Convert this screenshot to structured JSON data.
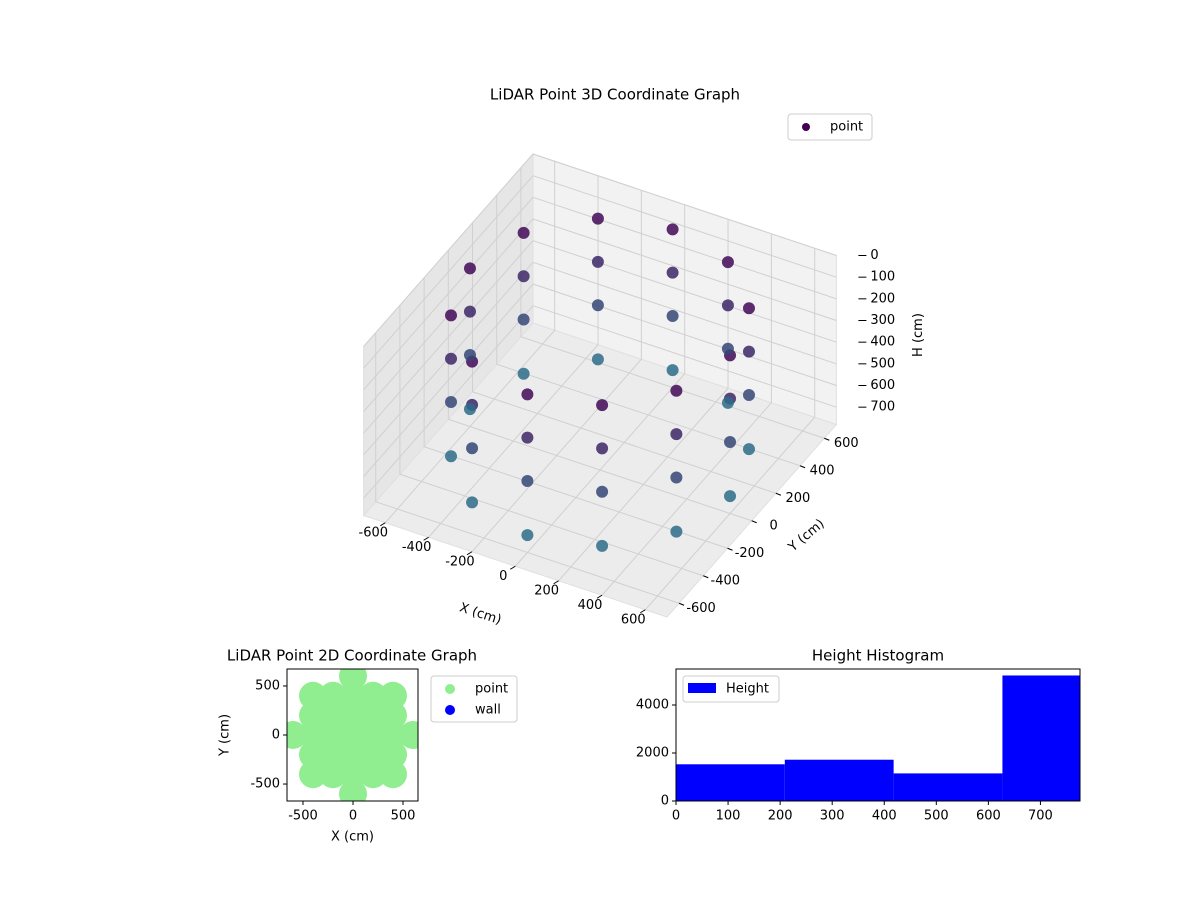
{
  "chart_data": [
    {
      "type": "scatter3d",
      "title": "LiDAR Point 3D Coordinate Graph",
      "x_label": "X (cm)",
      "y_label": "Y (cm)",
      "z_label": "H (cm)",
      "xlim": [
        -700,
        700
      ],
      "ylim": [
        -700,
        700
      ],
      "zlim": [
        780,
        0
      ],
      "xticks": [
        -600,
        -400,
        -200,
        0,
        200,
        400,
        600
      ],
      "yticks": [
        -600,
        -400,
        -200,
        0,
        200,
        400,
        600
      ],
      "zticks": [
        0,
        100,
        200,
        300,
        400,
        500,
        600,
        700
      ],
      "grid": true,
      "legend": "upper right",
      "series": [
        {
          "name": "point",
          "color": "#440154",
          "x": [
            600,
            520,
            300,
            0,
            -300,
            -520,
            -600,
            -520,
            -300,
            0,
            300,
            520,
            600,
            520,
            300,
            0,
            -300,
            -520,
            -600,
            -520,
            -300,
            0,
            300,
            520,
            600,
            520,
            300,
            0,
            -300,
            -520,
            -600,
            -520,
            -300,
            0,
            300,
            520,
            600,
            520,
            300,
            0,
            -300,
            -520,
            -600,
            -520,
            -300,
            0,
            300,
            520
          ],
          "y": [
            0,
            300,
            520,
            600,
            520,
            300,
            0,
            -300,
            -520,
            -600,
            -520,
            -300,
            0,
            300,
            520,
            600,
            520,
            300,
            0,
            -300,
            -520,
            -600,
            -520,
            -300,
            0,
            300,
            520,
            600,
            520,
            300,
            0,
            -300,
            -520,
            -600,
            -520,
            -300,
            0,
            300,
            520,
            600,
            520,
            300,
            0,
            -300,
            -520,
            -600,
            -520,
            -300
          ],
          "z": [
            50,
            50,
            50,
            50,
            50,
            50,
            50,
            50,
            50,
            50,
            50,
            50,
            250,
            250,
            250,
            250,
            250,
            250,
            250,
            250,
            250,
            250,
            250,
            250,
            450,
            450,
            450,
            450,
            450,
            450,
            450,
            450,
            450,
            450,
            450,
            450,
            700,
            700,
            700,
            700,
            700,
            700,
            700,
            700,
            700,
            700,
            700,
            700
          ]
        }
      ]
    },
    {
      "type": "scatter",
      "title": "LiDAR Point 2D Coordinate Graph",
      "x_label": "X (cm)",
      "y_label": "Y (cm)",
      "xlim": [
        -660,
        650
      ],
      "ylim": [
        -673,
        673
      ],
      "xticks": [
        -500,
        0,
        500
      ],
      "yticks": [
        -500,
        0,
        500
      ],
      "legend": "outside right",
      "series": [
        {
          "name": "point",
          "color": "#90ee90",
          "x": [
            0,
            -400,
            -200,
            0,
            200,
            400,
            -400,
            -200,
            0,
            200,
            400,
            -600,
            -400,
            -200,
            0,
            200,
            400,
            600,
            -400,
            -200,
            0,
            200,
            400,
            -400,
            -200,
            0,
            200,
            400,
            0
          ],
          "y": [
            600,
            400,
            400,
            400,
            400,
            400,
            200,
            200,
            200,
            200,
            200,
            0,
            0,
            0,
            0,
            0,
            0,
            0,
            -200,
            -200,
            -200,
            -200,
            -200,
            -400,
            -400,
            -400,
            -400,
            -400,
            -600
          ]
        },
        {
          "name": "wall",
          "color": "#0000ff",
          "x": [],
          "y": []
        }
      ]
    },
    {
      "type": "histogram",
      "title": "Height Histogram",
      "bins": [
        0,
        209,
        418,
        627,
        776
      ],
      "values": [
        1530,
        1720,
        1150,
        5230
      ],
      "series_name": "Height",
      "color": "#0000ff",
      "xlim": [
        0,
        776
      ],
      "ylim": [
        0,
        5500
      ],
      "xticks": [
        0,
        100,
        200,
        300,
        400,
        500,
        600,
        700
      ],
      "yticks": [
        0,
        2000,
        4000
      ],
      "legend": "upper left"
    }
  ]
}
